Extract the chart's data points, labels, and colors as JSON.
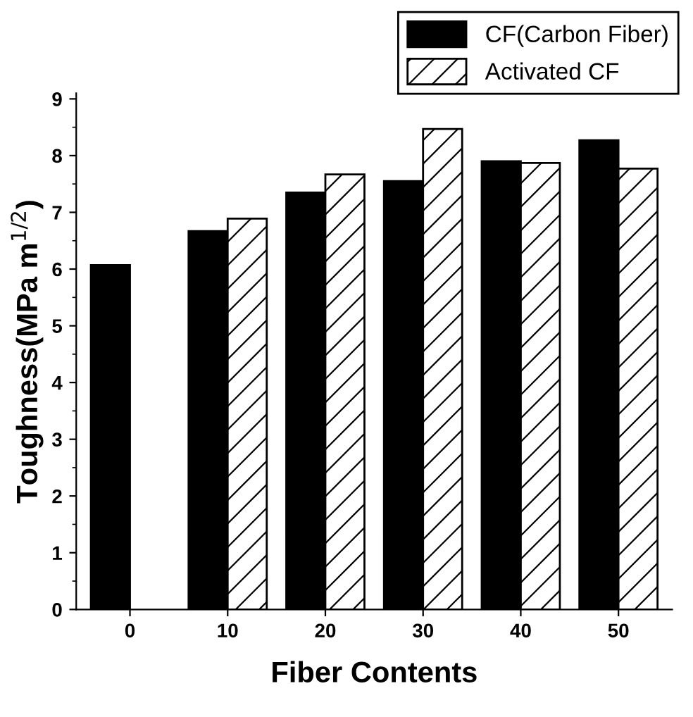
{
  "chart_data": {
    "type": "bar",
    "xlabel": "Fiber Contents",
    "ylabel": "Toughness(MPa m$^{1/2}$)",
    "categories": [
      "0",
      "10",
      "20",
      "30",
      "40",
      "50"
    ],
    "series": [
      {
        "name": "CF(Carbon Fiber)",
        "color": "#000000",
        "values": [
          6.07,
          6.67,
          7.35,
          7.55,
          7.9,
          8.27
        ]
      },
      {
        "name": "Activated CF",
        "color": "#000000",
        "values": [
          null,
          6.89,
          7.67,
          8.47,
          7.87,
          7.77
        ]
      }
    ],
    "ylim": [
      0,
      9.1
    ],
    "yticks": [
      0,
      1,
      2,
      3,
      4,
      5,
      6,
      7,
      8,
      9
    ],
    "grid": false,
    "legend": "top right"
  }
}
